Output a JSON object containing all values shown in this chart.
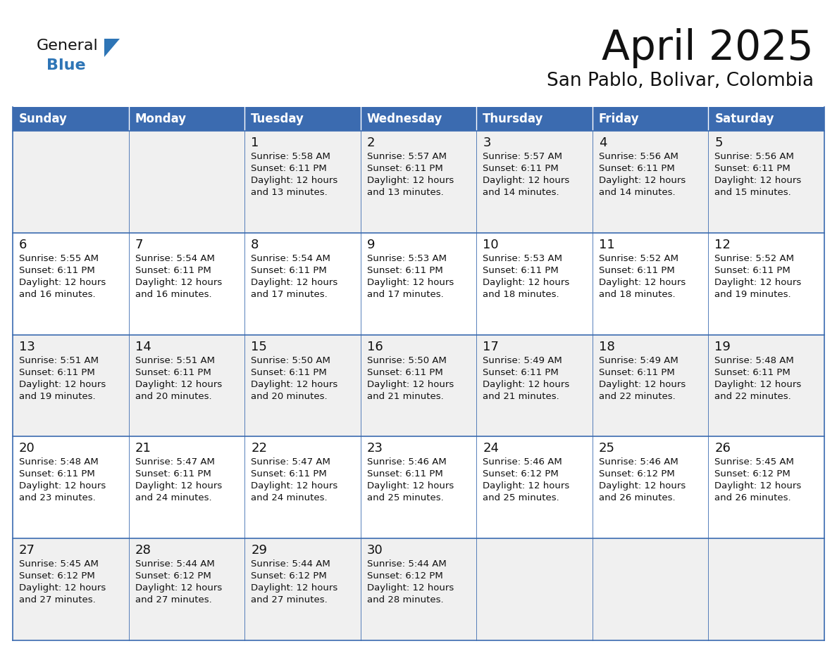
{
  "title": "April 2025",
  "subtitle": "San Pablo, Bolivar, Colombia",
  "days_of_week": [
    "Sunday",
    "Monday",
    "Tuesday",
    "Wednesday",
    "Thursday",
    "Friday",
    "Saturday"
  ],
  "header_bg": "#3B6BB0",
  "header_text": "#FFFFFF",
  "cell_bg_light": "#F0F0F0",
  "cell_bg_white": "#FFFFFF",
  "cell_border": "#3B6BB0",
  "title_color": "#111111",
  "subtitle_color": "#111111",
  "day_num_color": "#111111",
  "info_color": "#111111",
  "logo_general_color": "#111111",
  "logo_blue_color": "#2E75B6",
  "weeks": [
    {
      "days": [
        {
          "date": "",
          "info": ""
        },
        {
          "date": "",
          "info": ""
        },
        {
          "date": "1",
          "info": "Sunrise: 5:58 AM\nSunset: 6:11 PM\nDaylight: 12 hours\nand 13 minutes."
        },
        {
          "date": "2",
          "info": "Sunrise: 5:57 AM\nSunset: 6:11 PM\nDaylight: 12 hours\nand 13 minutes."
        },
        {
          "date": "3",
          "info": "Sunrise: 5:57 AM\nSunset: 6:11 PM\nDaylight: 12 hours\nand 14 minutes."
        },
        {
          "date": "4",
          "info": "Sunrise: 5:56 AM\nSunset: 6:11 PM\nDaylight: 12 hours\nand 14 minutes."
        },
        {
          "date": "5",
          "info": "Sunrise: 5:56 AM\nSunset: 6:11 PM\nDaylight: 12 hours\nand 15 minutes."
        }
      ]
    },
    {
      "days": [
        {
          "date": "6",
          "info": "Sunrise: 5:55 AM\nSunset: 6:11 PM\nDaylight: 12 hours\nand 16 minutes."
        },
        {
          "date": "7",
          "info": "Sunrise: 5:54 AM\nSunset: 6:11 PM\nDaylight: 12 hours\nand 16 minutes."
        },
        {
          "date": "8",
          "info": "Sunrise: 5:54 AM\nSunset: 6:11 PM\nDaylight: 12 hours\nand 17 minutes."
        },
        {
          "date": "9",
          "info": "Sunrise: 5:53 AM\nSunset: 6:11 PM\nDaylight: 12 hours\nand 17 minutes."
        },
        {
          "date": "10",
          "info": "Sunrise: 5:53 AM\nSunset: 6:11 PM\nDaylight: 12 hours\nand 18 minutes."
        },
        {
          "date": "11",
          "info": "Sunrise: 5:52 AM\nSunset: 6:11 PM\nDaylight: 12 hours\nand 18 minutes."
        },
        {
          "date": "12",
          "info": "Sunrise: 5:52 AM\nSunset: 6:11 PM\nDaylight: 12 hours\nand 19 minutes."
        }
      ]
    },
    {
      "days": [
        {
          "date": "13",
          "info": "Sunrise: 5:51 AM\nSunset: 6:11 PM\nDaylight: 12 hours\nand 19 minutes."
        },
        {
          "date": "14",
          "info": "Sunrise: 5:51 AM\nSunset: 6:11 PM\nDaylight: 12 hours\nand 20 minutes."
        },
        {
          "date": "15",
          "info": "Sunrise: 5:50 AM\nSunset: 6:11 PM\nDaylight: 12 hours\nand 20 minutes."
        },
        {
          "date": "16",
          "info": "Sunrise: 5:50 AM\nSunset: 6:11 PM\nDaylight: 12 hours\nand 21 minutes."
        },
        {
          "date": "17",
          "info": "Sunrise: 5:49 AM\nSunset: 6:11 PM\nDaylight: 12 hours\nand 21 minutes."
        },
        {
          "date": "18",
          "info": "Sunrise: 5:49 AM\nSunset: 6:11 PM\nDaylight: 12 hours\nand 22 minutes."
        },
        {
          "date": "19",
          "info": "Sunrise: 5:48 AM\nSunset: 6:11 PM\nDaylight: 12 hours\nand 22 minutes."
        }
      ]
    },
    {
      "days": [
        {
          "date": "20",
          "info": "Sunrise: 5:48 AM\nSunset: 6:11 PM\nDaylight: 12 hours\nand 23 minutes."
        },
        {
          "date": "21",
          "info": "Sunrise: 5:47 AM\nSunset: 6:11 PM\nDaylight: 12 hours\nand 24 minutes."
        },
        {
          "date": "22",
          "info": "Sunrise: 5:47 AM\nSunset: 6:11 PM\nDaylight: 12 hours\nand 24 minutes."
        },
        {
          "date": "23",
          "info": "Sunrise: 5:46 AM\nSunset: 6:11 PM\nDaylight: 12 hours\nand 25 minutes."
        },
        {
          "date": "24",
          "info": "Sunrise: 5:46 AM\nSunset: 6:12 PM\nDaylight: 12 hours\nand 25 minutes."
        },
        {
          "date": "25",
          "info": "Sunrise: 5:46 AM\nSunset: 6:12 PM\nDaylight: 12 hours\nand 26 minutes."
        },
        {
          "date": "26",
          "info": "Sunrise: 5:45 AM\nSunset: 6:12 PM\nDaylight: 12 hours\nand 26 minutes."
        }
      ]
    },
    {
      "days": [
        {
          "date": "27",
          "info": "Sunrise: 5:45 AM\nSunset: 6:12 PM\nDaylight: 12 hours\nand 27 minutes."
        },
        {
          "date": "28",
          "info": "Sunrise: 5:44 AM\nSunset: 6:12 PM\nDaylight: 12 hours\nand 27 minutes."
        },
        {
          "date": "29",
          "info": "Sunrise: 5:44 AM\nSunset: 6:12 PM\nDaylight: 12 hours\nand 27 minutes."
        },
        {
          "date": "30",
          "info": "Sunrise: 5:44 AM\nSunset: 6:12 PM\nDaylight: 12 hours\nand 28 minutes."
        },
        {
          "date": "",
          "info": ""
        },
        {
          "date": "",
          "info": ""
        },
        {
          "date": "",
          "info": ""
        }
      ]
    }
  ]
}
